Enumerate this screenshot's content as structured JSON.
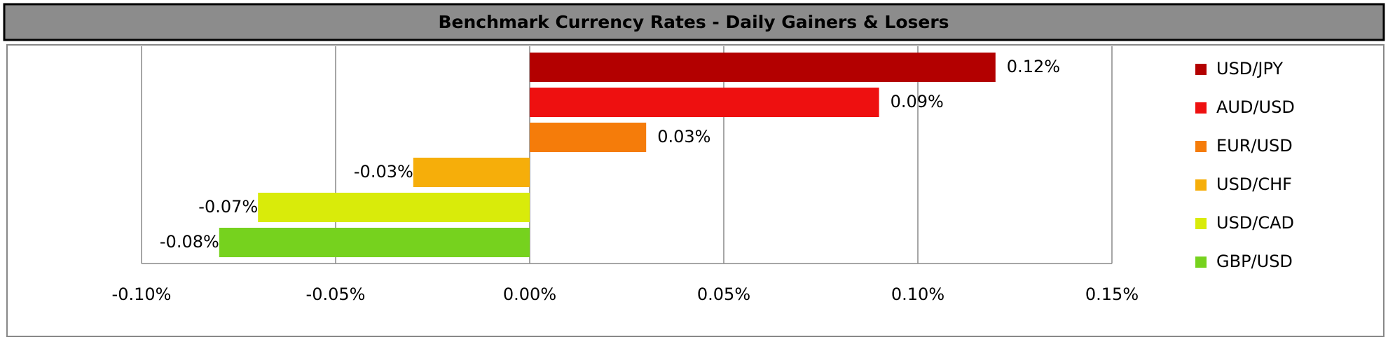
{
  "chart_data": {
    "type": "hbar",
    "title": "Benchmark Currency Rates - Daily Gainers & Losers",
    "categories": [
      "USD/JPY",
      "AUD/USD",
      "EUR/USD",
      "USD/CHF",
      "USD/CAD",
      "GBP/USD"
    ],
    "values": [
      0.12,
      0.09,
      0.03,
      -0.03,
      -0.07,
      -0.08
    ],
    "value_labels": [
      "0.12%",
      "0.09%",
      "0.03%",
      "-0.03%",
      "-0.07%",
      "-0.08%"
    ],
    "colors": [
      "#b30000",
      "#ee1010",
      "#f57c0a",
      "#f6ae0a",
      "#d9eb0a",
      "#76d21e"
    ],
    "xlim": [
      -0.1,
      0.15
    ],
    "xticks": [
      {
        "value": -0.1,
        "label": "-0.10%"
      },
      {
        "value": -0.05,
        "label": "-0.05%"
      },
      {
        "value": 0,
        "label": "0.00%"
      },
      {
        "value": 0.05,
        "label": "0.05%"
      },
      {
        "value": 0.1,
        "label": "0.10%"
      },
      {
        "value": 0.15,
        "label": "0.15%"
      }
    ],
    "grid": true,
    "legend": "right"
  }
}
